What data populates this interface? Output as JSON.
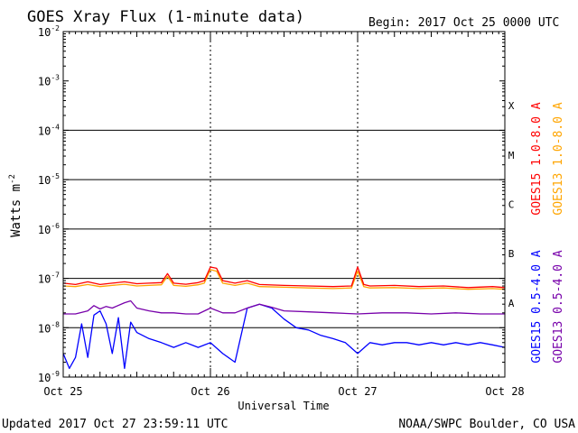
{
  "chart_data": {
    "type": "line",
    "title": "GOES Xray Flux (1-minute data)",
    "begin_label": "Begin:  2017 Oct 25 0000 UTC",
    "ylabel": "Watts m",
    "ylabel_superscript": "-2",
    "xlabel": "Universal Time",
    "y_scale": "log",
    "ylim": [
      1e-09,
      0.01
    ],
    "y_ticks": [
      {
        "base": "10",
        "exp": "-9",
        "value": 1e-09
      },
      {
        "base": "10",
        "exp": "-8",
        "value": 1e-08
      },
      {
        "base": "10",
        "exp": "-7",
        "value": 1e-07
      },
      {
        "base": "10",
        "exp": "-6",
        "value": 1e-06
      },
      {
        "base": "10",
        "exp": "-5",
        "value": 1e-05
      },
      {
        "base": "10",
        "exp": "-4",
        "value": 0.0001
      },
      {
        "base": "10",
        "exp": "-3",
        "value": 0.001
      },
      {
        "base": "10",
        "exp": "-2",
        "value": 0.01
      }
    ],
    "xlim_hours": [
      0,
      72
    ],
    "x_ticks": [
      {
        "label": "Oct 25",
        "hours": 0
      },
      {
        "label": "Oct 26",
        "hours": 24
      },
      {
        "label": "Oct 27",
        "hours": 48
      },
      {
        "label": "Oct 28",
        "hours": 72
      }
    ],
    "flare_classes": [
      {
        "label": "X",
        "value": 0.0001
      },
      {
        "label": "M",
        "value": 1e-05
      },
      {
        "label": "C",
        "value": 1e-06
      },
      {
        "label": "B",
        "value": 1e-07
      },
      {
        "label": "A",
        "value": 1e-08
      }
    ],
    "class_threshold_lines": [
      0.0001,
      1e-05,
      1e-06,
      1e-07,
      1e-08
    ],
    "grid": "horizontal lines at class thresholds, dotted vertical lines at day boundaries",
    "legend_position": "right, vertical",
    "series": [
      {
        "name": "GOES15 1.0-8.0 A",
        "color": "#ff0000",
        "x_hours": [
          0,
          2,
          4,
          6,
          8,
          10,
          12,
          14,
          16,
          17,
          18,
          20,
          22,
          23,
          24,
          25,
          26,
          28,
          30,
          32,
          36,
          40,
          44,
          47,
          48,
          49,
          50,
          54,
          58,
          62,
          66,
          70,
          72
        ],
        "values": [
          8e-08,
          7.5e-08,
          8.5e-08,
          7.5e-08,
          8e-08,
          8.5e-08,
          7.8e-08,
          8e-08,
          8.2e-08,
          1.25e-07,
          8e-08,
          7.6e-08,
          8.2e-08,
          9e-08,
          1.7e-07,
          1.6e-07,
          9e-08,
          8e-08,
          9e-08,
          7.5e-08,
          7.2e-08,
          7e-08,
          6.8e-08,
          7e-08,
          1.7e-07,
          7.5e-08,
          7e-08,
          7.2e-08,
          6.8e-08,
          7e-08,
          6.5e-08,
          6.8e-08,
          6.5e-08
        ]
      },
      {
        "name": "GOES13 1.0-8.0 A",
        "color": "#ffa500",
        "x_hours": [
          0,
          2,
          4,
          6,
          8,
          10,
          12,
          14,
          16,
          17,
          18,
          20,
          22,
          23,
          24,
          25,
          26,
          28,
          30,
          32,
          36,
          40,
          44,
          47,
          48,
          49,
          50,
          54,
          58,
          62,
          66,
          70,
          72
        ],
        "values": [
          7e-08,
          6.8e-08,
          7.5e-08,
          6.8e-08,
          7.2e-08,
          7.6e-08,
          7e-08,
          7.2e-08,
          7.4e-08,
          1.1e-07,
          7.2e-08,
          6.9e-08,
          7.4e-08,
          8e-08,
          1.5e-07,
          1.4e-07,
          8e-08,
          7.2e-08,
          8e-08,
          6.8e-08,
          6.6e-08,
          6.4e-08,
          6.2e-08,
          6.4e-08,
          1.4e-07,
          6.8e-08,
          6.4e-08,
          6.5e-08,
          6.2e-08,
          6.4e-08,
          6e-08,
          6.2e-08,
          6e-08
        ]
      },
      {
        "name": "GOES15 0.5-4.0 A",
        "color": "#0000ff",
        "x_hours": [
          0,
          1,
          2,
          3,
          4,
          5,
          6,
          7,
          8,
          9,
          10,
          11,
          12,
          14,
          16,
          18,
          20,
          22,
          24,
          26,
          28,
          30,
          32,
          34,
          36,
          38,
          40,
          42,
          44,
          46,
          48,
          50,
          52,
          54,
          56,
          58,
          60,
          62,
          64,
          66,
          68,
          70,
          72
        ],
        "values": [
          3e-09,
          1.5e-09,
          2.5e-09,
          1.2e-08,
          2.5e-09,
          1.8e-08,
          2.2e-08,
          1.2e-08,
          3e-09,
          1.6e-08,
          1.5e-09,
          1.3e-08,
          8e-09,
          6e-09,
          5e-09,
          4e-09,
          5e-09,
          4e-09,
          5e-09,
          3e-09,
          2e-09,
          2.5e-08,
          3e-08,
          2.5e-08,
          1.5e-08,
          1e-08,
          9e-09,
          7e-09,
          6e-09,
          5e-09,
          3e-09,
          5e-09,
          4.5e-09,
          5e-09,
          5e-09,
          4.5e-09,
          5e-09,
          4.5e-09,
          5e-09,
          4.5e-09,
          5e-09,
          4.5e-09,
          4e-09
        ]
      },
      {
        "name": "GOES13 0.5-4.0 A",
        "color": "#7700aa",
        "x_hours": [
          0,
          2,
          4,
          5,
          6,
          7,
          8,
          10,
          11,
          12,
          14,
          16,
          18,
          20,
          22,
          24,
          26,
          28,
          30,
          32,
          34,
          36,
          40,
          44,
          48,
          52,
          56,
          60,
          64,
          68,
          72
        ],
        "values": [
          1.9e-08,
          1.9e-08,
          2.2e-08,
          2.8e-08,
          2.4e-08,
          2.7e-08,
          2.5e-08,
          3.2e-08,
          3.5e-08,
          2.5e-08,
          2.2e-08,
          2e-08,
          2e-08,
          1.9e-08,
          1.9e-08,
          2.5e-08,
          2e-08,
          2e-08,
          2.5e-08,
          3e-08,
          2.6e-08,
          2.2e-08,
          2.1e-08,
          2e-08,
          1.9e-08,
          2e-08,
          2e-08,
          1.9e-08,
          2e-08,
          1.9e-08,
          1.9e-08
        ]
      }
    ]
  },
  "footer": {
    "updated": "Updated 2017 Oct 27 23:59:11 UTC",
    "source": "NOAA/SWPC Boulder, CO USA"
  }
}
